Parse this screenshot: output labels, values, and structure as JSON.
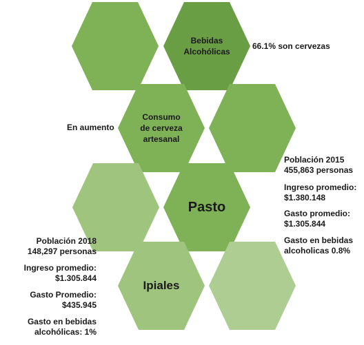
{
  "colors": {
    "dark": "#6a9e45",
    "mid": "#7fb257",
    "light": "#9ec47e",
    "pale": "#adcd92"
  },
  "hexagons": [
    {
      "id": "hex-top-left",
      "label": "",
      "color": "mid"
    },
    {
      "id": "hex-bebidas",
      "label": "Bebidas\nAlcohólicas",
      "color": "dark"
    },
    {
      "id": "hex-consumo",
      "label": "Consumo\nde cerveza\nartesanal",
      "color": "mid"
    },
    {
      "id": "hex-mid-right",
      "label": "",
      "color": "mid"
    },
    {
      "id": "hex-row3-left",
      "label": "",
      "color": "light"
    },
    {
      "id": "hex-pasto",
      "label": "Pasto",
      "color": "mid"
    },
    {
      "id": "hex-ipiales",
      "label": "Ipiales",
      "color": "light"
    },
    {
      "id": "hex-bottom-right",
      "label": "",
      "color": "pale"
    }
  ],
  "texts": {
    "cervezas": "66.1% son cervezas",
    "aumento": "En aumento",
    "pasto_poblacion": "Población 2015\n455,863  personas",
    "pasto_ingreso": "Ingreso promedio:\n$1.380.148",
    "pasto_gasto": "Gasto promedio:\n$1.305.844",
    "pasto_bebidas": "Gasto en bebidas\nalcoholicas 0.8%",
    "ipiales_poblacion": "Población  2018\n148,297  personas",
    "ipiales_ingreso": "Ingreso promedio:\n$1.305.844",
    "ipiales_gasto": "Gasto Promedio:\n$435.945",
    "ipiales_bebidas": "Gasto en bebidas\nalcohólicas: 1%"
  }
}
